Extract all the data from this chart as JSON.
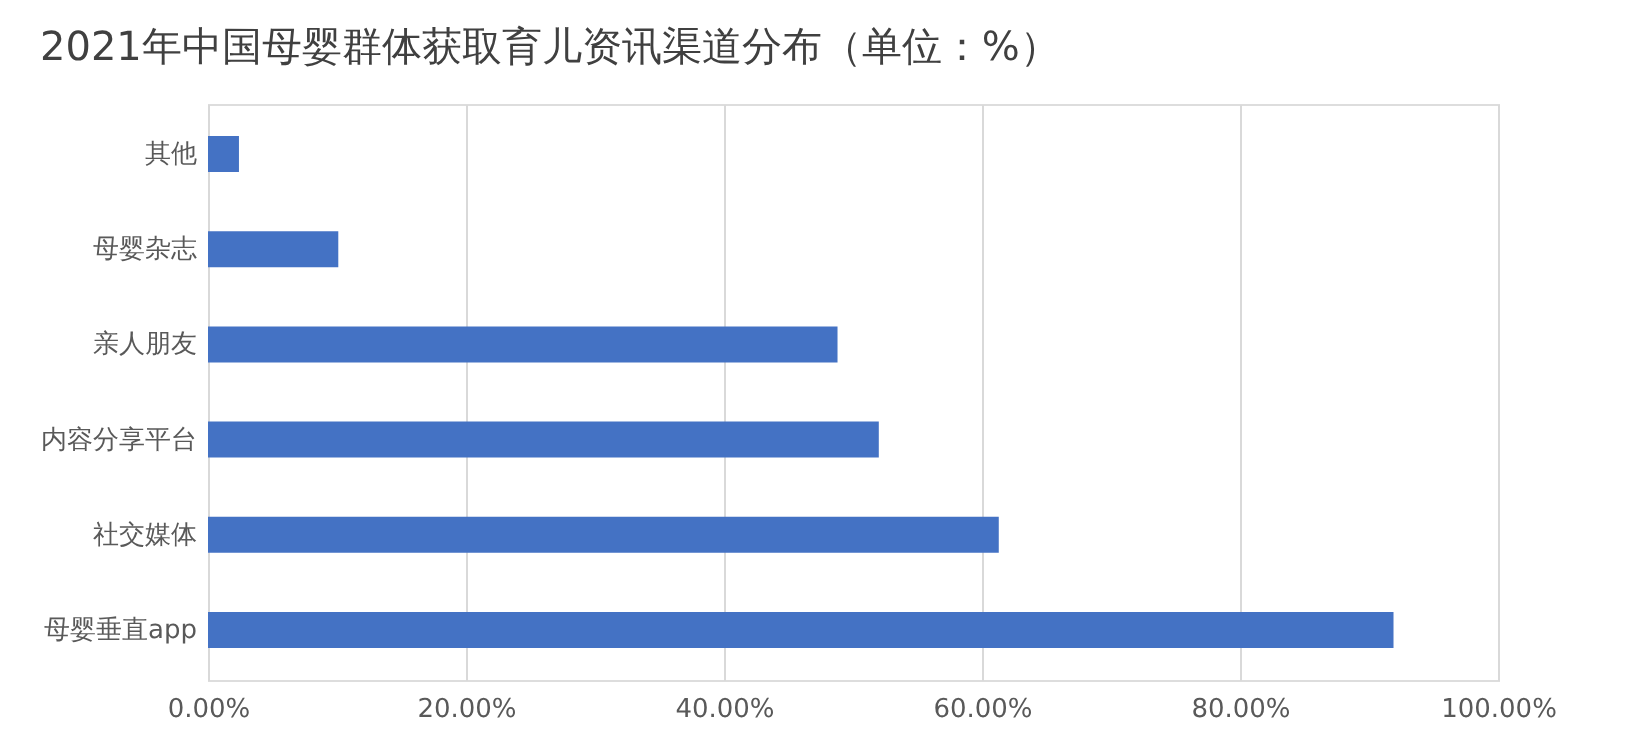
{
  "chart_data": {
    "type": "bar",
    "orientation": "horizontal",
    "title": "2021年中国母婴群体获取育儿资讯渠道分布（单位：%）",
    "categories": [
      "其他",
      "母婴杂志",
      "亲人朋友",
      "内容分享平台",
      "社交媒体",
      "母婴垂直app"
    ],
    "values": [
      2.4,
      10.1,
      48.8,
      52.0,
      61.3,
      91.9
    ],
    "color": "#4472c4",
    "xlim": [
      0,
      100
    ],
    "xticks": [
      {
        "value": 0,
        "label": "0.00%"
      },
      {
        "value": 20,
        "label": "20.00%"
      },
      {
        "value": 40,
        "label": "40.00%"
      },
      {
        "value": 60,
        "label": "60.00%"
      },
      {
        "value": 80,
        "label": "80.00%"
      },
      {
        "value": 100,
        "label": "100.00%"
      }
    ],
    "grid": "x"
  }
}
